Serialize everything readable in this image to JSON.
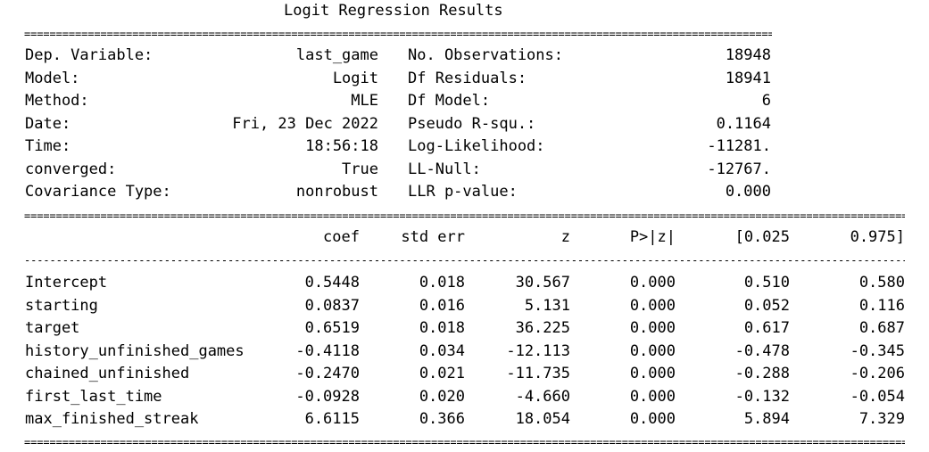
{
  "title": "Logit Regression Results",
  "summary": {
    "left": [
      {
        "label": "Dep. Variable:",
        "value": "last_game"
      },
      {
        "label": "Model:",
        "value": "Logit"
      },
      {
        "label": "Method:",
        "value": "MLE"
      },
      {
        "label": "Date:",
        "value": "Fri, 23 Dec 2022"
      },
      {
        "label": "Time:",
        "value": "18:56:18"
      },
      {
        "label": "converged:",
        "value": "True"
      },
      {
        "label": "Covariance Type:",
        "value": "nonrobust"
      }
    ],
    "right": [
      {
        "label": "No. Observations:",
        "value": "18948"
      },
      {
        "label": "Df Residuals:",
        "value": "18941"
      },
      {
        "label": "Df Model:",
        "value": "6"
      },
      {
        "label": "Pseudo R-squ.:",
        "value": "0.1164"
      },
      {
        "label": "Log-Likelihood:",
        "value": "-11281."
      },
      {
        "label": "LL-Null:",
        "value": "-12767."
      },
      {
        "label": "LLR p-value:",
        "value": "0.000"
      }
    ]
  },
  "coef_table": {
    "headers": [
      "coef",
      "std err",
      "z",
      "P>|z|",
      "[0.025",
      "0.975]"
    ],
    "rows": [
      {
        "name": "Intercept",
        "values": [
          "0.5448",
          "0.018",
          "30.567",
          "0.000",
          "0.510",
          "0.580"
        ]
      },
      {
        "name": "starting",
        "values": [
          "0.0837",
          "0.016",
          "5.131",
          "0.000",
          "0.052",
          "0.116"
        ]
      },
      {
        "name": "target",
        "values": [
          "0.6519",
          "0.018",
          "36.225",
          "0.000",
          "0.617",
          "0.687"
        ]
      },
      {
        "name": "history_unfinished_games",
        "values": [
          "-0.4118",
          "0.034",
          "-12.113",
          "0.000",
          "-0.478",
          "-0.345"
        ]
      },
      {
        "name": "chained_unfinished",
        "values": [
          "-0.2470",
          "0.021",
          "-11.735",
          "0.000",
          "-0.288",
          "-0.206"
        ]
      },
      {
        "name": "first_last_time",
        "values": [
          "-0.0928",
          "0.020",
          "-4.660",
          "0.000",
          "-0.132",
          "-0.054"
        ]
      },
      {
        "name": "max_finished_streak",
        "values": [
          "6.6115",
          "0.366",
          "18.054",
          "0.000",
          "5.894",
          "7.329"
        ]
      }
    ]
  },
  "rules": {
    "double": "====================================================================================================================================================================================",
    "single": "-----------------------------------------------------------------------------------------------------------------------------------------------------------------------------------------"
  }
}
